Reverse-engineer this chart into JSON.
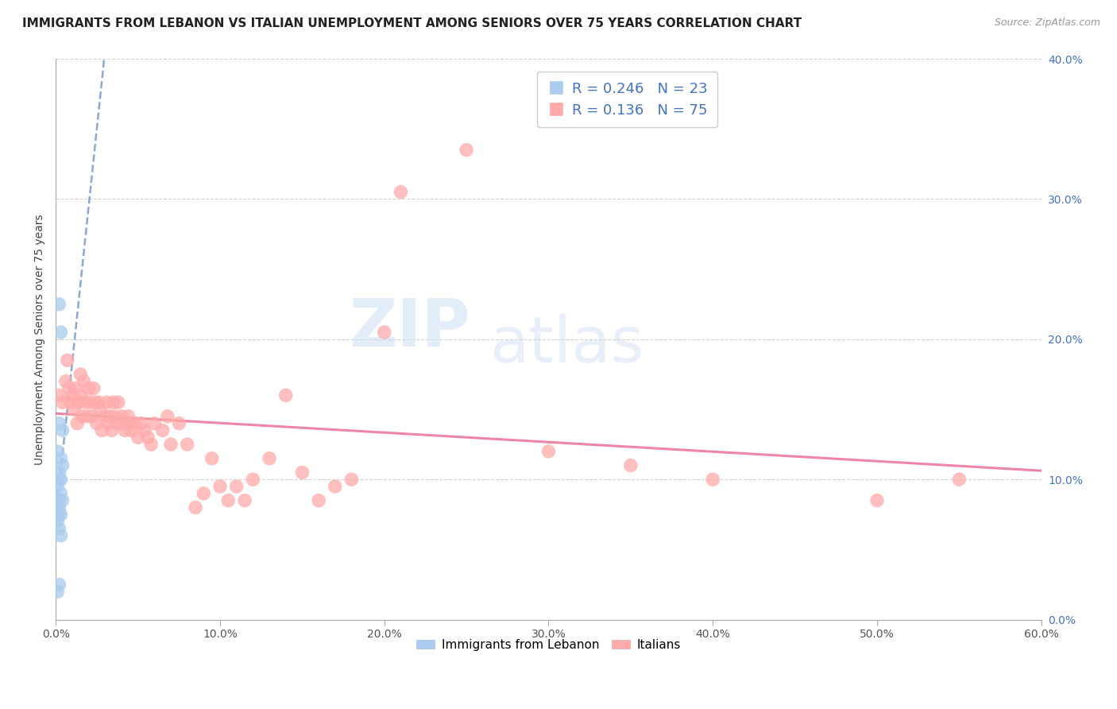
{
  "title": "IMMIGRANTS FROM LEBANON VS ITALIAN UNEMPLOYMENT AMONG SENIORS OVER 75 YEARS CORRELATION CHART",
  "source": "Source: ZipAtlas.com",
  "ylabel": "Unemployment Among Seniors over 75 years",
  "legend_bottom": [
    "Immigrants from Lebanon",
    "Italians"
  ],
  "xlim": [
    0.0,
    0.6
  ],
  "ylim": [
    0.0,
    0.4
  ],
  "xticks": [
    0.0,
    0.1,
    0.2,
    0.3,
    0.4,
    0.5,
    0.6
  ],
  "yticks": [
    0.0,
    0.1,
    0.2,
    0.3,
    0.4
  ],
  "xticklabels": [
    "0.0%",
    "10.0%",
    "20.0%",
    "30.0%",
    "40.0%",
    "50.0%",
    "60.0%"
  ],
  "yticklabels_right": [
    "0.0%",
    "10.0%",
    "20.0%",
    "30.0%",
    "40.0%"
  ],
  "R_lebanon": 0.246,
  "N_lebanon": 23,
  "R_italians": 0.136,
  "N_italians": 75,
  "blue_scatter_color": "#aaccee",
  "pink_scatter_color": "#ffaaaa",
  "blue_line_color": "#7799cc",
  "pink_line_color": "#ee7799",
  "watermark_zip": "ZIP",
  "watermark_atlas": "atlas",
  "lebanon_x": [
    0.002,
    0.003,
    0.004,
    0.002,
    0.001,
    0.003,
    0.004,
    0.002,
    0.003,
    0.002,
    0.001,
    0.003,
    0.004,
    0.002,
    0.001,
    0.002,
    0.003,
    0.002,
    0.001,
    0.002,
    0.003,
    0.002,
    0.001
  ],
  "lebanon_y": [
    0.225,
    0.205,
    0.135,
    0.14,
    0.12,
    0.115,
    0.11,
    0.105,
    0.1,
    0.1,
    0.095,
    0.09,
    0.085,
    0.085,
    0.08,
    0.08,
    0.075,
    0.075,
    0.07,
    0.065,
    0.06,
    0.025,
    0.02
  ],
  "italians_x": [
    0.002,
    0.004,
    0.006,
    0.007,
    0.008,
    0.009,
    0.01,
    0.011,
    0.012,
    0.013,
    0.014,
    0.015,
    0.015,
    0.016,
    0.017,
    0.018,
    0.019,
    0.02,
    0.021,
    0.022,
    0.023,
    0.024,
    0.025,
    0.026,
    0.027,
    0.028,
    0.03,
    0.031,
    0.032,
    0.033,
    0.034,
    0.035,
    0.036,
    0.037,
    0.038,
    0.04,
    0.041,
    0.042,
    0.044,
    0.045,
    0.046,
    0.048,
    0.05,
    0.052,
    0.054,
    0.056,
    0.058,
    0.06,
    0.065,
    0.068,
    0.07,
    0.075,
    0.08,
    0.085,
    0.09,
    0.095,
    0.1,
    0.105,
    0.11,
    0.115,
    0.12,
    0.13,
    0.14,
    0.15,
    0.16,
    0.17,
    0.18,
    0.2,
    0.21,
    0.25,
    0.3,
    0.35,
    0.4,
    0.5,
    0.55
  ],
  "italians_y": [
    0.16,
    0.155,
    0.17,
    0.185,
    0.165,
    0.155,
    0.16,
    0.15,
    0.165,
    0.14,
    0.155,
    0.175,
    0.16,
    0.145,
    0.17,
    0.155,
    0.145,
    0.165,
    0.155,
    0.145,
    0.165,
    0.155,
    0.14,
    0.155,
    0.15,
    0.135,
    0.145,
    0.155,
    0.14,
    0.145,
    0.135,
    0.155,
    0.145,
    0.14,
    0.155,
    0.145,
    0.14,
    0.135,
    0.145,
    0.14,
    0.135,
    0.14,
    0.13,
    0.14,
    0.135,
    0.13,
    0.125,
    0.14,
    0.135,
    0.145,
    0.125,
    0.14,
    0.125,
    0.08,
    0.09,
    0.115,
    0.095,
    0.085,
    0.095,
    0.085,
    0.1,
    0.115,
    0.16,
    0.105,
    0.085,
    0.095,
    0.1,
    0.205,
    0.305,
    0.335,
    0.12,
    0.11,
    0.1,
    0.085,
    0.1
  ]
}
